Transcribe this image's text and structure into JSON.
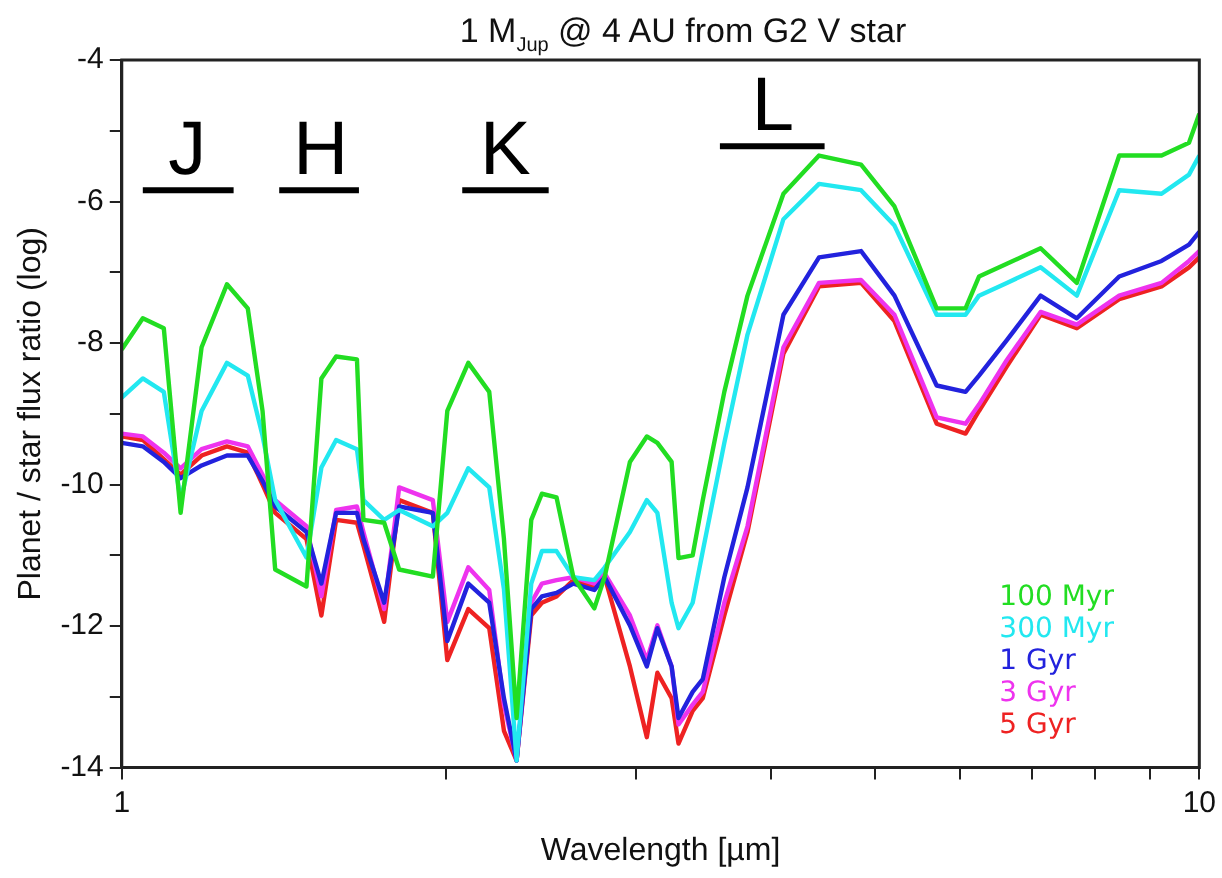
{
  "chart_data": {
    "type": "line",
    "title": "1 M$_{Jup}$ @  4 AU from G2 V star",
    "xlabel": "Wavelength [µm]",
    "ylabel": "Planet / star flux ratio (log)",
    "log": "x",
    "xlim": [
      1,
      10
    ],
    "xticks": [
      1,
      {
        "value": 2,
        "label": null
      },
      {
        "value": 3,
        "label": null
      },
      {
        "value": 4,
        "label": null
      },
      {
        "value": 5,
        "label": null
      },
      {
        "value": 6,
        "label": null
      },
      {
        "value": 7,
        "label": null
      },
      {
        "value": 8,
        "label": null
      },
      {
        "value": 9,
        "label": null
      },
      10
    ],
    "ylim": [
      -14,
      -4
    ],
    "yticks": [
      -14,
      {
        "value": -13,
        "label": null
      },
      -12,
      {
        "value": -11,
        "label": null
      },
      -10,
      {
        "value": -9,
        "label": null
      },
      -8,
      {
        "value": -7,
        "label": null
      },
      -6,
      {
        "value": -5,
        "label": null
      },
      -4
    ],
    "grid": false,
    "legend": "bottom right",
    "marker": "none",
    "line_style": "solid",
    "annotations": [
      {
        "text": "J",
        "x": 1.15,
        "y": -5.84
      },
      {
        "text": "H",
        "x": 1.53,
        "y": -5.84
      },
      {
        "text": "K",
        "x": 2.27,
        "y": -5.84
      },
      {
        "text": "L",
        "x": 4.02,
        "y": -5.22
      }
    ],
    "x": [
      1,
      1.046,
      1.094,
      1.134,
      1.186,
      1.252,
      1.309,
      1.351,
      1.388,
      1.484,
      1.532,
      1.581,
      1.653,
      1.676,
      1.752,
      1.809,
      1.944,
      2.005,
      2.097,
      2.193,
      2.263,
      2.325,
      2.399,
      2.454,
      2.532,
      2.625,
      2.745,
      2.807,
      2.962,
      3.071,
      3.141,
      3.238,
      3.286,
      3.387,
      3.461,
      3.624,
      3.808,
      4.112,
      4.437,
      4.854,
      5.213,
      5.705,
      6.068,
      6.245,
      6.628,
      7.124,
      7.697,
      8.427,
      9.225,
      9.782,
      10
    ],
    "series": [
      {
        "name": "100 Myr",
        "color": "#22dd22",
        "values": [
          -8.09,
          -7.65,
          -7.79,
          -10.4,
          -8.06,
          -7.17,
          -7.51,
          -8.96,
          -11.2,
          -11.44,
          -8.5,
          -8.19,
          -8.23,
          -10.5,
          -10.54,
          -11.2,
          -11.3,
          -8.96,
          -8.28,
          -8.69,
          -10.77,
          -13.3,
          -10.5,
          -10.13,
          -10.18,
          -11.31,
          -11.75,
          -11.3,
          -9.68,
          -9.32,
          -9.41,
          -9.68,
          -11.04,
          -11.0,
          -10.22,
          -8.69,
          -7.33,
          -5.89,
          -5.35,
          -5.48,
          -6.07,
          -7.51,
          -7.51,
          -7.06,
          -6.88,
          -6.66,
          -7.15,
          -5.35,
          -5.35,
          -5.17,
          -4.76
        ]
      },
      {
        "name": "300 Myr",
        "color": "#22e8f0",
        "values": [
          -8.77,
          -8.5,
          -8.69,
          -10.22,
          -8.96,
          -8.28,
          -8.46,
          -9.31,
          -10.22,
          -11.03,
          -9.76,
          -9.37,
          -9.5,
          -10.22,
          -10.5,
          -10.36,
          -10.59,
          -10.4,
          -9.77,
          -10.04,
          -11.48,
          -13.9,
          -11.4,
          -10.94,
          -10.94,
          -11.31,
          -11.35,
          -11.17,
          -10.67,
          -10.22,
          -10.4,
          -11.67,
          -12.03,
          -11.67,
          -10.94,
          -9.41,
          -7.88,
          -6.25,
          -5.75,
          -5.84,
          -6.34,
          -7.6,
          -7.6,
          -7.33,
          -7.15,
          -6.93,
          -7.33,
          -5.84,
          -5.89,
          -5.62,
          -5.35
        ]
      },
      {
        "name": "1 Gyr",
        "color": "#2222dd",
        "values": [
          -9.41,
          -9.46,
          -9.68,
          -9.91,
          -9.73,
          -9.59,
          -9.59,
          -9.95,
          -10.31,
          -10.67,
          -11.4,
          -10.4,
          -10.4,
          -10.77,
          -11.67,
          -10.31,
          -10.4,
          -12.21,
          -11.4,
          -11.67,
          -13.02,
          -13.9,
          -11.76,
          -11.58,
          -11.53,
          -11.4,
          -11.49,
          -11.31,
          -11.99,
          -12.57,
          -12.03,
          -12.57,
          -13.3,
          -12.93,
          -12.75,
          -11.31,
          -10.04,
          -7.6,
          -6.79,
          -6.7,
          -7.33,
          -8.6,
          -8.69,
          -8.46,
          -7.96,
          -7.33,
          -7.65,
          -7.06,
          -6.84,
          -6.61,
          -6.43
        ]
      },
      {
        "name": "3 Gyr",
        "color": "#ee33ee",
        "values": [
          -9.28,
          -9.32,
          -9.55,
          -9.77,
          -9.5,
          -9.39,
          -9.46,
          -9.86,
          -10.22,
          -10.59,
          -11.58,
          -10.36,
          -10.31,
          -10.67,
          -11.76,
          -10.04,
          -10.22,
          -11.94,
          -11.17,
          -11.49,
          -13.11,
          -13.9,
          -11.67,
          -11.4,
          -11.35,
          -11.31,
          -11.4,
          -11.26,
          -11.85,
          -12.48,
          -11.99,
          -12.57,
          -13.39,
          -13.11,
          -12.93,
          -11.67,
          -10.59,
          -8.06,
          -7.15,
          -7.11,
          -7.6,
          -9.05,
          -9.14,
          -8.87,
          -8.24,
          -7.56,
          -7.74,
          -7.33,
          -7.15,
          -6.84,
          -6.7
        ]
      },
      {
        "name": "5 Gyr",
        "color": "#ee2222",
        "values": [
          -9.32,
          -9.37,
          -9.64,
          -9.86,
          -9.59,
          -9.46,
          -9.55,
          -10.0,
          -10.4,
          -10.77,
          -11.85,
          -10.5,
          -10.54,
          -10.86,
          -11.94,
          -10.22,
          -10.4,
          -12.48,
          -11.76,
          -12.03,
          -13.48,
          -13.9,
          -11.85,
          -11.67,
          -11.58,
          -11.35,
          -11.44,
          -11.31,
          -12.57,
          -13.57,
          -12.66,
          -13.02,
          -13.66,
          -13.2,
          -13.02,
          -11.85,
          -10.67,
          -8.15,
          -7.2,
          -7.15,
          -7.69,
          -9.14,
          -9.28,
          -8.96,
          -8.33,
          -7.6,
          -7.79,
          -7.38,
          -7.2,
          -6.93,
          -6.79
        ]
      },
      {
        "type": "line",
        "color": "#000000",
        "x": [
          1.046,
          1.27
        ],
        "values": [
          -5.84,
          -5.84
        ]
      },
      {
        "type": "line",
        "color": "#000000",
        "x": [
          1.4,
          1.66
        ],
        "values": [
          -5.84,
          -5.84
        ]
      },
      {
        "type": "line",
        "color": "#000000",
        "x": [
          2.07,
          2.49
        ],
        "values": [
          -5.84,
          -5.84
        ]
      },
      {
        "type": "line",
        "color": "#000000",
        "x": [
          3.59,
          4.49
        ],
        "values": [
          -5.22,
          -5.22
        ]
      }
    ]
  }
}
